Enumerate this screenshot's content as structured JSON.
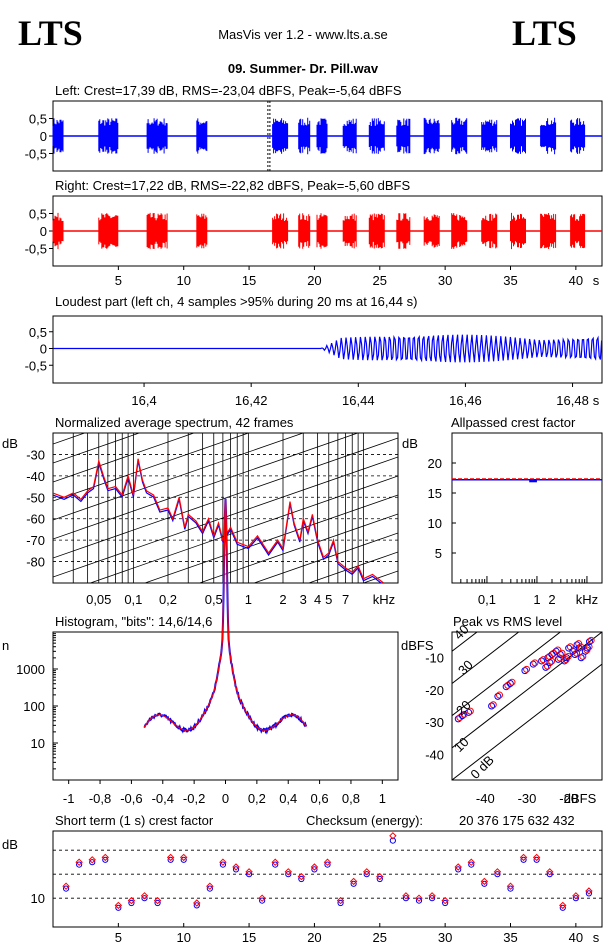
{
  "header": {
    "logo_left": "LTS",
    "logo_right": "LTS",
    "app_title": "MasVis ver 1.2 - www.lts.a.se",
    "file_name": "09. Summer- Dr. Pill.wav"
  },
  "colors": {
    "left": "#0000ff",
    "right": "#ff0000"
  },
  "chart_data": [
    {
      "id": "left-waveform",
      "type": "area",
      "title": "Left: Crest=17,39 dB, RMS=-23,04 dBFS, Peak=-5,64 dBFS",
      "ylim": [
        -1,
        1
      ],
      "yticks": [
        "0,5",
        "0",
        "-0,5"
      ],
      "marker_time_s": 16.44,
      "bursts_s": [
        [
          0.0,
          0.8
        ],
        [
          3.5,
          5.0
        ],
        [
          7.2,
          8.8
        ],
        [
          11.0,
          11.8
        ],
        [
          16.8,
          18.0
        ],
        [
          18.8,
          19.7
        ],
        [
          20.2,
          21.0
        ],
        [
          22.2,
          23.2
        ],
        [
          24.2,
          25.4
        ],
        [
          26.3,
          27.3
        ],
        [
          28.4,
          29.6
        ],
        [
          30.5,
          31.7
        ],
        [
          32.8,
          34.0
        ],
        [
          35.0,
          36.2
        ],
        [
          37.3,
          38.5
        ],
        [
          39.6,
          40.7
        ]
      ],
      "peak": 0.52
    },
    {
      "id": "right-waveform",
      "type": "area",
      "title": "Right: Crest=17,22 dB, RMS=-22,82 dBFS, Peak=-5,60 dBFS",
      "ylim": [
        -1,
        1
      ],
      "yticks": [
        "0,5",
        "0",
        "-0,5"
      ],
      "xlabel": "s",
      "x_range": [
        0,
        42
      ],
      "xticks": [
        5,
        10,
        15,
        20,
        25,
        30,
        35,
        40
      ],
      "bursts_s": [
        [
          0.0,
          0.8
        ],
        [
          3.5,
          5.0
        ],
        [
          7.2,
          8.8
        ],
        [
          11.0,
          11.8
        ],
        [
          16.8,
          18.0
        ],
        [
          18.8,
          19.7
        ],
        [
          20.2,
          21.0
        ],
        [
          22.2,
          23.2
        ],
        [
          24.2,
          25.4
        ],
        [
          26.3,
          27.3
        ],
        [
          28.4,
          29.6
        ],
        [
          30.5,
          31.7
        ],
        [
          32.8,
          34.0
        ],
        [
          35.0,
          36.2
        ],
        [
          37.3,
          38.5
        ],
        [
          39.6,
          40.7
        ]
      ],
      "peak": 0.52
    },
    {
      "id": "loudest-part",
      "type": "line",
      "title": "Loudest part (left  ch, 4 samples >95% during 20 ms at 16,44 s)",
      "x_range": [
        16.383,
        16.4855
      ],
      "xticks": [
        "16,4",
        "16,42",
        "16,44",
        "16,46",
        "16,48"
      ],
      "xlabel": "s",
      "onset_s": 16.433,
      "peak": 0.45
    },
    {
      "id": "spectrum",
      "type": "line",
      "title": "Normalized average spectrum, 42 frames",
      "ylabel": "dB",
      "xlabel": "kHz",
      "yticks": [
        -30,
        -40,
        -50,
        -60,
        -70,
        -80
      ],
      "ylim": [
        -90,
        -20
      ],
      "xlim_khz": [
        0.02,
        20
      ],
      "xticks": [
        "0,05",
        "0,1",
        "0,2",
        "0,5",
        "1",
        "2",
        "3",
        "4",
        "5",
        "7"
      ],
      "points_khz_db": [
        [
          0.02,
          -48
        ],
        [
          0.025,
          -50
        ],
        [
          0.03,
          -48
        ],
        [
          0.035,
          -51
        ],
        [
          0.04,
          -47
        ],
        [
          0.045,
          -45
        ],
        [
          0.05,
          -33
        ],
        [
          0.055,
          -40
        ],
        [
          0.06,
          -46
        ],
        [
          0.07,
          -45
        ],
        [
          0.08,
          -49
        ],
        [
          0.09,
          -40
        ],
        [
          0.1,
          -49
        ],
        [
          0.11,
          -32
        ],
        [
          0.12,
          -42
        ],
        [
          0.13,
          -47
        ],
        [
          0.15,
          -49
        ],
        [
          0.17,
          -56
        ],
        [
          0.2,
          -55
        ],
        [
          0.22,
          -60
        ],
        [
          0.25,
          -50
        ],
        [
          0.28,
          -64
        ],
        [
          0.3,
          -58
        ],
        [
          0.35,
          -61
        ],
        [
          0.4,
          -66
        ],
        [
          0.45,
          -60
        ],
        [
          0.5,
          -68
        ],
        [
          0.55,
          -62
        ],
        [
          0.6,
          -70
        ],
        [
          0.7,
          -64
        ],
        [
          0.8,
          -71
        ],
        [
          1.0,
          -73
        ],
        [
          1.2,
          -68
        ],
        [
          1.5,
          -76
        ],
        [
          1.8,
          -70
        ],
        [
          2.0,
          -74
        ],
        [
          2.3,
          -52
        ],
        [
          2.5,
          -62
        ],
        [
          2.8,
          -70
        ],
        [
          3.0,
          -60
        ],
        [
          3.3,
          -66
        ],
        [
          3.6,
          -58
        ],
        [
          4.0,
          -70
        ],
        [
          4.5,
          -78
        ],
        [
          5.0,
          -76
        ],
        [
          5.5,
          -70
        ],
        [
          6.0,
          -80
        ],
        [
          7.0,
          -83
        ],
        [
          8.0,
          -85
        ],
        [
          9.0,
          -82
        ],
        [
          10.0,
          -88
        ],
        [
          12.0,
          -86
        ],
        [
          15.0,
          -90
        ]
      ]
    },
    {
      "id": "allpassed-crest",
      "type": "line",
      "title": "Allpassed crest factor",
      "ylabel": "dB",
      "xlabel": "kHz",
      "yticks": [
        20,
        15,
        10,
        5
      ],
      "ylim": [
        0,
        25
      ],
      "xticks": [
        "0,1",
        "1",
        "2"
      ],
      "value_db": 17.2
    },
    {
      "id": "histogram",
      "type": "line",
      "title": "Histogram, \"bits\": 14,6/14,6",
      "ylabel": "n",
      "yticks": [
        1000,
        100,
        10
      ],
      "xticks": [
        "-1",
        "-0,8",
        "-0,6",
        "-0,4",
        "-0,2",
        "0",
        "0,2",
        "0,4",
        "0,6",
        "0,8",
        "1"
      ],
      "xlim": [
        -1.1,
        1.1
      ],
      "half_width": 0.52,
      "peak_count": 6000
    },
    {
      "id": "peak-vs-rms",
      "type": "scatter",
      "title": "Peak vs RMS level",
      "ylabel": "dBFS",
      "xlabel": "dBFS",
      "xticks": [
        -40,
        -30,
        -20
      ],
      "yticks": [
        -10,
        -20,
        -30,
        -40
      ],
      "xlim": [
        -48,
        -12
      ],
      "ylim": [
        -48,
        -2
      ],
      "crest_lines_db": [
        "40",
        "30",
        "20",
        "10",
        "0 dB"
      ],
      "points": [
        [
          -46.5,
          -29
        ],
        [
          -45.5,
          -28
        ],
        [
          -44,
          -27
        ],
        [
          -38.5,
          -25
        ],
        [
          -37,
          -22
        ],
        [
          -35,
          -19
        ],
        [
          -34,
          -18
        ],
        [
          -30.5,
          -14
        ],
        [
          -28.5,
          -12
        ],
        [
          -26.5,
          -11
        ],
        [
          -25.5,
          -13
        ],
        [
          -25,
          -10
        ],
        [
          -24,
          -9
        ],
        [
          -23,
          -8
        ],
        [
          -22,
          -9
        ],
        [
          -21,
          -11
        ],
        [
          -20.5,
          -10
        ],
        [
          -20,
          -7
        ],
        [
          -19,
          -8
        ],
        [
          -18.5,
          -9
        ],
        [
          -18,
          -6
        ],
        [
          -17.5,
          -7
        ],
        [
          -17,
          -10
        ],
        [
          -16,
          -8
        ],
        [
          -15.5,
          -7
        ],
        [
          -15,
          -5
        ],
        [
          -24.5,
          -11.5
        ],
        [
          -22.5,
          -10.5
        ]
      ]
    },
    {
      "id": "short-term-crest",
      "type": "scatter",
      "title": "Short term (1 s) crest factor",
      "checksum_label": "Checksum (energy):",
      "checksum_value": "20 376 175 632 432",
      "ylabel": "dB",
      "yticks": [
        10
      ],
      "xlabel": "s",
      "xticks": [
        5,
        10,
        15,
        20,
        25,
        30,
        35,
        40
      ],
      "x_range": [
        0,
        42
      ],
      "ylim": [
        4,
        24
      ],
      "dotted_levels_db": [
        10,
        15,
        20
      ],
      "points_left": [
        [
          1,
          12
        ],
        [
          2,
          17
        ],
        [
          3,
          17.5
        ],
        [
          4,
          18
        ],
        [
          5,
          8
        ],
        [
          6,
          9
        ],
        [
          7,
          10
        ],
        [
          8,
          9
        ],
        [
          9,
          18
        ],
        [
          10,
          18
        ],
        [
          11,
          8.5
        ],
        [
          12,
          12
        ],
        [
          13,
          17
        ],
        [
          14,
          16
        ],
        [
          15,
          15
        ],
        [
          16,
          9.5
        ],
        [
          17,
          17
        ],
        [
          18,
          15
        ],
        [
          19,
          14
        ],
        [
          20,
          16
        ],
        [
          21,
          17
        ],
        [
          22,
          9
        ],
        [
          23,
          13
        ],
        [
          24,
          15
        ],
        [
          25,
          14
        ],
        [
          26,
          22
        ],
        [
          27,
          10
        ],
        [
          28,
          9.5
        ],
        [
          29,
          10
        ],
        [
          30,
          9
        ],
        [
          31,
          16
        ],
        [
          32,
          17
        ],
        [
          33,
          13
        ],
        [
          34,
          15
        ],
        [
          35,
          12
        ],
        [
          36,
          18
        ],
        [
          37,
          18
        ],
        [
          38,
          15
        ],
        [
          39,
          8
        ],
        [
          40,
          10
        ],
        [
          41,
          11
        ]
      ],
      "points_right": [
        [
          1,
          12.5
        ],
        [
          2,
          17.5
        ],
        [
          3,
          18
        ],
        [
          4,
          18.5
        ],
        [
          5,
          8.5
        ],
        [
          6,
          9.5
        ],
        [
          7,
          10.5
        ],
        [
          8,
          9.5
        ],
        [
          9,
          18.5
        ],
        [
          10,
          18.5
        ],
        [
          11,
          9
        ],
        [
          12,
          12.5
        ],
        [
          13,
          17.5
        ],
        [
          14,
          16.5
        ],
        [
          15,
          15.5
        ],
        [
          16,
          10
        ],
        [
          17,
          17.5
        ],
        [
          18,
          15.5
        ],
        [
          19,
          14.5
        ],
        [
          20,
          16.5
        ],
        [
          21,
          17.5
        ],
        [
          22,
          9.5
        ],
        [
          23,
          13.5
        ],
        [
          24,
          15.5
        ],
        [
          25,
          14.5
        ],
        [
          26,
          23
        ],
        [
          27,
          10.5
        ],
        [
          28,
          10
        ],
        [
          29,
          10.5
        ],
        [
          30,
          9.5
        ],
        [
          31,
          16.5
        ],
        [
          32,
          17.5
        ],
        [
          33,
          13.5
        ],
        [
          34,
          15.5
        ],
        [
          35,
          12.5
        ],
        [
          36,
          18.5
        ],
        [
          37,
          18.5
        ],
        [
          38,
          15.5
        ],
        [
          39,
          8.5
        ],
        [
          40,
          10.5
        ],
        [
          41,
          11.5
        ]
      ]
    }
  ]
}
